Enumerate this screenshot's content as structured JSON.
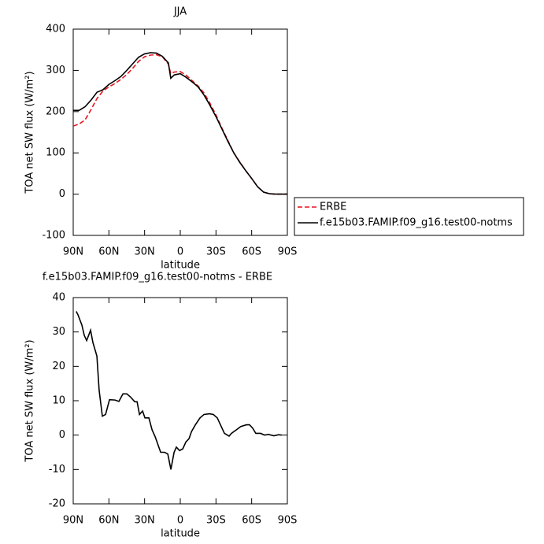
{
  "chart_data": [
    {
      "type": "line",
      "title": "JJA",
      "x_label": "latitude",
      "y_label": "TOA net SW flux (W/m²)",
      "x": [
        90,
        85,
        80,
        75,
        70,
        65,
        60,
        55,
        50,
        45,
        40,
        35,
        30,
        25,
        20,
        15,
        10,
        8,
        5,
        0,
        -5,
        -10,
        -15,
        -20,
        -25,
        -30,
        -35,
        -40,
        -45,
        -50,
        -55,
        -60,
        -65,
        -70,
        -75,
        -80,
        -85,
        -90
      ],
      "series": [
        {
          "name": "ERBE",
          "color": "#e8141e",
          "dash": "dashed",
          "values": [
            165,
            170,
            180,
            205,
            232,
            250,
            260,
            268,
            278,
            290,
            305,
            322,
            333,
            337,
            338,
            333,
            315,
            292,
            296,
            297,
            288,
            275,
            262,
            245,
            220,
            192,
            160,
            130,
            100,
            78,
            57,
            38,
            18,
            5,
            1,
            0,
            0,
            0
          ]
        },
        {
          "name": "f.e15b03.FAMIP.f09_g16.test00-notms",
          "color": "#000000",
          "dash": "solid",
          "values": [
            203,
            203,
            212,
            228,
            247,
            253,
            266,
            275,
            285,
            300,
            316,
            332,
            340,
            343,
            342,
            334,
            318,
            281,
            289,
            292,
            283,
            272,
            260,
            240,
            215,
            188,
            158,
            128,
            100,
            77,
            57,
            38,
            18,
            5,
            1,
            0,
            0,
            0
          ]
        }
      ],
      "xlim": [
        90,
        -90
      ],
      "xticks": [
        {
          "value": 90,
          "label": "90N"
        },
        {
          "value": 60,
          "label": "60N"
        },
        {
          "value": 30,
          "label": "30N"
        },
        0,
        {
          "value": -30,
          "label": "30S"
        },
        {
          "value": -60,
          "label": "60S"
        },
        {
          "value": -90,
          "label": "90S"
        }
      ],
      "ylim": [
        -100,
        400
      ],
      "yticks": [
        -100,
        0,
        100,
        200,
        300,
        400
      ],
      "legend": "outside-right"
    },
    {
      "type": "line",
      "title": "f.e15b03.FAMIP.f09_g16.test00-notms - ERBE",
      "x_label": "latitude",
      "y_label": "TOA net SW flux (W/m²)",
      "x": [
        87.5,
        86.0,
        82.7,
        80.7,
        78.7,
        75.4,
        73.5,
        70.1,
        68.2,
        65.5,
        62.8,
        59.5,
        54.9,
        51.6,
        48.2,
        44.9,
        41.6,
        38.3,
        36.3,
        34.3,
        31.7,
        29.7,
        26.4,
        23.7,
        21.1,
        16.5,
        13.2,
        10.5,
        7.9,
        5.2,
        3.3,
        0.6,
        -2.1,
        -4.7,
        -7.4,
        -9.4,
        -12.7,
        -16.6,
        -19.9,
        -24.5,
        -27.8,
        -31.1,
        -35.1,
        -37.1,
        -41.0,
        -43.0,
        -47.0,
        -50.9,
        -55.6,
        -58.2,
        -60.9,
        -63.5,
        -67.5,
        -70.8,
        -74.1,
        -78.7,
        -82.7,
        -85.3
      ],
      "values": [
        36,
        35,
        32,
        29,
        27.5,
        30.5,
        27,
        23,
        13,
        5.5,
        6,
        10.3,
        10.2,
        9.8,
        12,
        12,
        11,
        9.7,
        9.7,
        6,
        7,
        5,
        5,
        1.5,
        -0.5,
        -5,
        -5,
        -5.5,
        -10,
        -5,
        -3.5,
        -4.5,
        -4,
        -2,
        -1,
        1,
        3,
        5,
        6,
        6.2,
        6,
        5,
        2,
        0.5,
        -0.3,
        0.5,
        1.5,
        2.5,
        3,
        3,
        2,
        0.5,
        0.5,
        0,
        0.2,
        -0.2,
        0.1,
        0
      ],
      "color": "#000000",
      "xlim": [
        90,
        -90
      ],
      "xticks": [
        {
          "value": 90,
          "label": "90N"
        },
        {
          "value": 60,
          "label": "60N"
        },
        {
          "value": 30,
          "label": "30N"
        },
        0,
        {
          "value": -30,
          "label": "30S"
        },
        {
          "value": -60,
          "label": "60S"
        },
        {
          "value": -90,
          "label": "90S"
        }
      ],
      "ylim": [
        -20,
        40
      ],
      "yticks": [
        -20,
        -10,
        0,
        10,
        20,
        30,
        40
      ]
    }
  ]
}
